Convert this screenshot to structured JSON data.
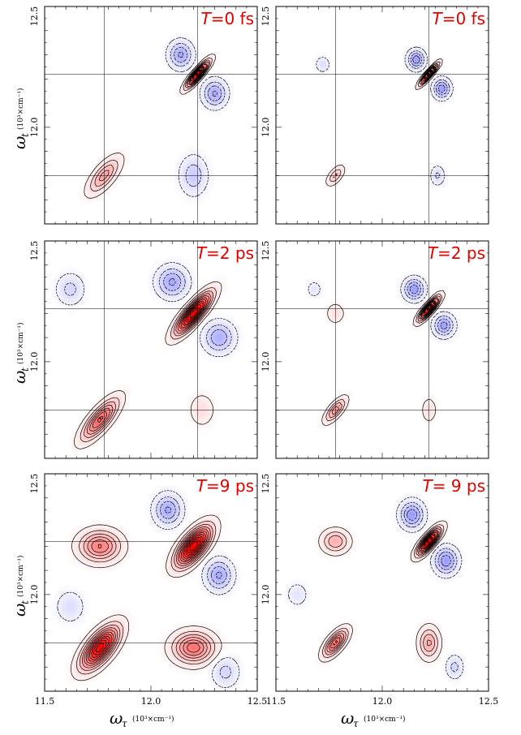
{
  "figure": {
    "ylabel_symbol": "ω",
    "ylabel_subscript": "t",
    "ylabel_units": "(10³×cm⁻¹)",
    "xlabel_symbol": "ω",
    "xlabel_subscript": "τ",
    "xlabel_units": "(10³×cm⁻¹)",
    "x_ticks": [
      "11.5",
      "12.0",
      "12.5"
    ],
    "y_ticks": [
      "12.5",
      "12.0"
    ],
    "colors": {
      "positive": "#ff0000",
      "negative": "#0000ff",
      "label": "#e00000",
      "frame": "#000000"
    }
  },
  "chart_data": [
    {
      "type": "heatmap",
      "panel": "row1-col1",
      "annotation": "T=0 fs",
      "annotation_italic": "T",
      "annotation_rest": "=0 fs",
      "xlim": [
        11.5,
        12.5
      ],
      "ylim": [
        11.6,
        12.5
      ],
      "guide_lines": {
        "x": [
          11.78,
          12.22
        ],
        "y": [
          12.22,
          11.8
        ]
      },
      "peaks": [
        {
          "x": 12.22,
          "y": 12.22,
          "amp": 1.0,
          "sa": 0.045,
          "sb": 0.012,
          "angle": 45
        },
        {
          "x": 11.78,
          "y": 11.8,
          "amp": 0.32,
          "sa": 0.06,
          "sb": 0.025,
          "angle": 45
        },
        {
          "x": 12.14,
          "y": 12.3,
          "amp": -0.3,
          "sa": 0.035,
          "sb": 0.035,
          "angle": 0
        },
        {
          "x": 12.3,
          "y": 12.14,
          "amp": -0.3,
          "sa": 0.035,
          "sb": 0.035,
          "angle": 0
        },
        {
          "x": 12.2,
          "y": 11.8,
          "amp": -0.18,
          "sa": 0.04,
          "sb": 0.05,
          "angle": 0
        }
      ]
    },
    {
      "type": "heatmap",
      "panel": "row1-col2",
      "annotation": "T=0 fs",
      "annotation_italic": "T",
      "annotation_rest": "=0 fs",
      "xlim": [
        11.5,
        12.5
      ],
      "ylim": [
        11.6,
        12.5
      ],
      "guide_lines": {
        "x": [
          11.78,
          12.22
        ],
        "y": [
          12.22,
          11.8
        ]
      },
      "peaks": [
        {
          "x": 12.22,
          "y": 12.22,
          "amp": 1.0,
          "sa": 0.035,
          "sb": 0.008,
          "angle": 45
        },
        {
          "x": 11.78,
          "y": 11.8,
          "amp": 0.22,
          "sa": 0.03,
          "sb": 0.015,
          "angle": 45
        },
        {
          "x": 12.16,
          "y": 12.28,
          "amp": -0.35,
          "sa": 0.025,
          "sb": 0.025,
          "angle": 0
        },
        {
          "x": 12.28,
          "y": 12.16,
          "amp": -0.35,
          "sa": 0.025,
          "sb": 0.025,
          "angle": 0
        },
        {
          "x": 11.72,
          "y": 12.26,
          "amp": -0.12,
          "sa": 0.02,
          "sb": 0.02,
          "angle": 0
        },
        {
          "x": 12.26,
          "y": 11.8,
          "amp": -0.14,
          "sa": 0.02,
          "sb": 0.025,
          "angle": 0
        }
      ]
    },
    {
      "type": "heatmap",
      "panel": "row2-col1",
      "annotation": "T=2 ps",
      "annotation_italic": "T",
      "annotation_rest": "=2 ps",
      "xlim": [
        11.5,
        12.5
      ],
      "ylim": [
        11.6,
        12.5
      ],
      "guide_lines": {
        "x": [
          11.78,
          12.22
        ],
        "y": [
          12.22,
          11.8
        ]
      },
      "peaks": [
        {
          "x": 12.2,
          "y": 12.2,
          "amp": 1.0,
          "sa": 0.07,
          "sb": 0.022,
          "angle": 45
        },
        {
          "x": 11.76,
          "y": 11.76,
          "amp": 0.55,
          "sa": 0.07,
          "sb": 0.025,
          "angle": 45
        },
        {
          "x": 12.1,
          "y": 12.33,
          "amp": -0.3,
          "sa": 0.045,
          "sb": 0.04,
          "angle": 0
        },
        {
          "x": 12.32,
          "y": 12.1,
          "amp": -0.28,
          "sa": 0.045,
          "sb": 0.04,
          "angle": 0
        },
        {
          "x": 11.62,
          "y": 12.3,
          "amp": -0.15,
          "sa": 0.04,
          "sb": 0.04,
          "angle": 0
        },
        {
          "x": 12.24,
          "y": 11.8,
          "amp": 0.12,
          "sa": 0.035,
          "sb": 0.04,
          "angle": 0
        }
      ]
    },
    {
      "type": "heatmap",
      "panel": "row2-col2",
      "annotation": "T=2 ps",
      "annotation_italic": "T",
      "annotation_rest": "=2 ps",
      "xlim": [
        11.5,
        12.5
      ],
      "ylim": [
        11.6,
        12.5
      ],
      "guide_lines": {
        "x": [
          11.78,
          12.22
        ],
        "y": [
          12.22,
          11.8
        ]
      },
      "peaks": [
        {
          "x": 12.22,
          "y": 12.22,
          "amp": 1.0,
          "sa": 0.04,
          "sb": 0.012,
          "angle": 45
        },
        {
          "x": 11.78,
          "y": 11.8,
          "amp": 0.35,
          "sa": 0.04,
          "sb": 0.016,
          "angle": 45
        },
        {
          "x": 12.15,
          "y": 12.3,
          "amp": -0.35,
          "sa": 0.03,
          "sb": 0.028,
          "angle": 0
        },
        {
          "x": 12.29,
          "y": 12.15,
          "amp": -0.33,
          "sa": 0.03,
          "sb": 0.028,
          "angle": 0
        },
        {
          "x": 11.78,
          "y": 12.2,
          "amp": 0.12,
          "sa": 0.025,
          "sb": 0.025,
          "angle": 0
        },
        {
          "x": 12.22,
          "y": 11.8,
          "amp": 0.12,
          "sa": 0.02,
          "sb": 0.03,
          "angle": 0
        },
        {
          "x": 11.68,
          "y": 12.3,
          "amp": -0.1,
          "sa": 0.02,
          "sb": 0.02,
          "angle": 0
        }
      ]
    },
    {
      "type": "heatmap",
      "panel": "row3-col1",
      "annotation": "T=9 ps",
      "annotation_italic": "T",
      "annotation_rest": "=9 ps",
      "xlim": [
        11.5,
        12.5
      ],
      "ylim": [
        11.6,
        12.5
      ],
      "guide_lines": {
        "x": [],
        "y": [
          12.22,
          11.8
        ]
      },
      "peaks": [
        {
          "x": 12.2,
          "y": 12.2,
          "amp": 1.0,
          "sa": 0.065,
          "sb": 0.03,
          "angle": 45
        },
        {
          "x": 11.76,
          "y": 11.78,
          "amp": 0.9,
          "sa": 0.07,
          "sb": 0.032,
          "angle": 45
        },
        {
          "x": 12.2,
          "y": 11.78,
          "amp": 0.5,
          "sa": 0.06,
          "sb": 0.04,
          "angle": 0
        },
        {
          "x": 11.76,
          "y": 12.2,
          "amp": 0.45,
          "sa": 0.06,
          "sb": 0.04,
          "angle": 0
        },
        {
          "x": 12.08,
          "y": 12.35,
          "amp": -0.3,
          "sa": 0.04,
          "sb": 0.04,
          "angle": 0
        },
        {
          "x": 12.32,
          "y": 12.08,
          "amp": -0.3,
          "sa": 0.04,
          "sb": 0.04,
          "angle": 0
        },
        {
          "x": 11.62,
          "y": 11.95,
          "amp": -0.12,
          "sa": 0.04,
          "sb": 0.04,
          "angle": 0
        },
        {
          "x": 12.35,
          "y": 11.68,
          "amp": -0.15,
          "sa": 0.04,
          "sb": 0.04,
          "angle": 0
        }
      ]
    },
    {
      "type": "heatmap",
      "panel": "row3-col2",
      "annotation": "T= 9 ps",
      "annotation_italic": "T",
      "annotation_rest": "= 9 ps",
      "xlim": [
        11.5,
        12.5
      ],
      "ylim": [
        11.6,
        12.5
      ],
      "guide_lines": {
        "x": [],
        "y": []
      },
      "peaks": [
        {
          "x": 12.22,
          "y": 12.22,
          "amp": 1.0,
          "sa": 0.045,
          "sb": 0.016,
          "angle": 45
        },
        {
          "x": 11.78,
          "y": 11.8,
          "amp": 0.55,
          "sa": 0.045,
          "sb": 0.02,
          "angle": 45
        },
        {
          "x": 12.22,
          "y": 11.8,
          "amp": 0.3,
          "sa": 0.03,
          "sb": 0.04,
          "angle": 0
        },
        {
          "x": 11.78,
          "y": 12.22,
          "amp": 0.28,
          "sa": 0.04,
          "sb": 0.03,
          "angle": 0
        },
        {
          "x": 12.14,
          "y": 12.33,
          "amp": -0.35,
          "sa": 0.035,
          "sb": 0.035,
          "angle": 0
        },
        {
          "x": 12.3,
          "y": 12.14,
          "amp": -0.35,
          "sa": 0.035,
          "sb": 0.035,
          "angle": 0
        },
        {
          "x": 12.34,
          "y": 11.7,
          "amp": -0.15,
          "sa": 0.025,
          "sb": 0.03,
          "angle": 0
        },
        {
          "x": 11.6,
          "y": 12.0,
          "amp": -0.1,
          "sa": 0.03,
          "sb": 0.03,
          "angle": 0
        }
      ]
    }
  ]
}
